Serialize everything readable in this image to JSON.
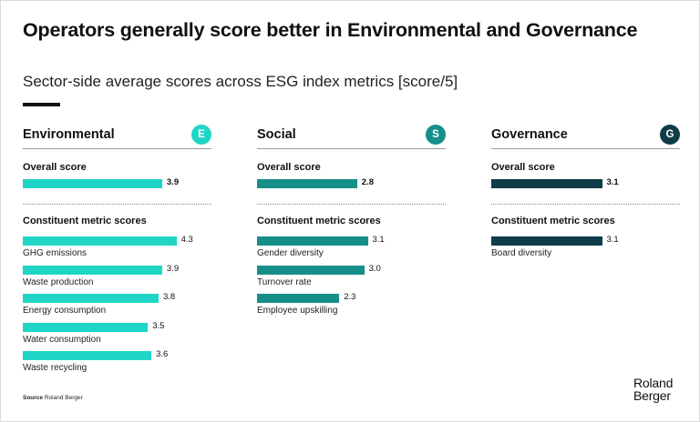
{
  "title": "Operators generally score better in Environmental and Governance",
  "subtitle": "Sector-side average scores across ESG index metrics [score/5]",
  "source_label": "Source",
  "source_text": "Roland Berger",
  "logo": [
    "Roland",
    "Berger"
  ],
  "colors": {
    "environmental": "#1fd6c6",
    "social": "#168f89",
    "governance": "#0e3c48"
  },
  "chart_data": [
    {
      "type": "bar",
      "panel": "Environmental",
      "badge": "E",
      "overall_label": "Overall score",
      "overall": 3.9,
      "metrics_label": "Constituent metric scores",
      "categories": [
        "GHG emissions",
        "Waste production",
        "Energy consumption",
        "Water consumption",
        "Waste recycling"
      ],
      "values": [
        4.3,
        3.9,
        3.8,
        3.5,
        3.6
      ],
      "xlim": [
        0,
        5
      ],
      "orientation": "horizontal"
    },
    {
      "type": "bar",
      "panel": "Social",
      "badge": "S",
      "overall_label": "Overall score",
      "overall": 2.8,
      "metrics_label": "Constituent metric scores",
      "categories": [
        "Gender diversity",
        "Turnover rate",
        "Employee upskilling"
      ],
      "values": [
        3.1,
        3.0,
        2.3
      ],
      "xlim": [
        0,
        5
      ],
      "orientation": "horizontal"
    },
    {
      "type": "bar",
      "panel": "Governance",
      "badge": "G",
      "overall_label": "Overall score",
      "overall": 3.1,
      "metrics_label": "Constituent metric scores",
      "categories": [
        "Board diversity"
      ],
      "values": [
        3.1
      ],
      "xlim": [
        0,
        5
      ],
      "orientation": "horizontal"
    }
  ]
}
